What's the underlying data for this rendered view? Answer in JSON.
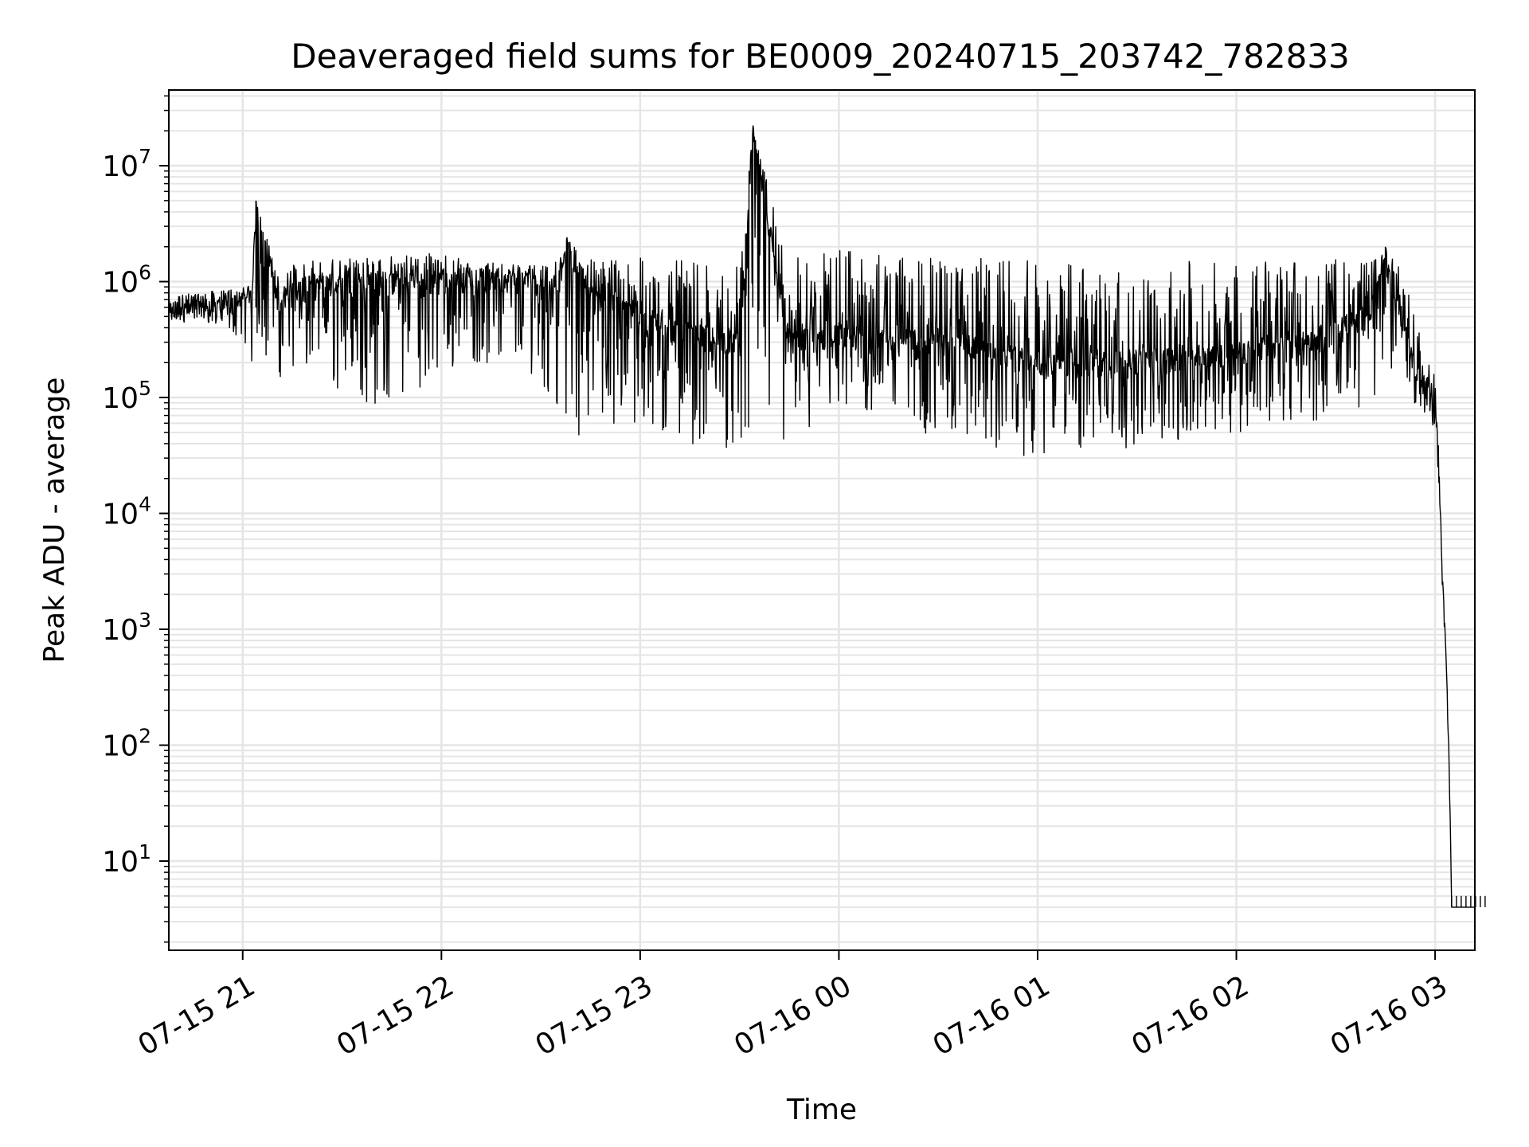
{
  "chart_data": {
    "type": "line",
    "title": "Deaveraged field sums for BE0009_20240715_203742_782833",
    "xlabel": "Time",
    "ylabel": "Peak ADU - average",
    "yscale": "log",
    "xlim": [
      "2024-07-15 20:37:42",
      "2024-07-16 03:12:00"
    ],
    "ylim": [
      1.7,
      45000000
    ],
    "grid": true,
    "line_color": "#000000",
    "grid_color": "#e5e5e5",
    "x_ticks": [
      {
        "value": "2024-07-15 21:00",
        "label": "07-15 21"
      },
      {
        "value": "2024-07-15 22:00",
        "label": "07-15 22"
      },
      {
        "value": "2024-07-15 23:00",
        "label": "07-15 23"
      },
      {
        "value": "2024-07-16 00:00",
        "label": "07-16 00"
      },
      {
        "value": "2024-07-16 01:00",
        "label": "07-16 01"
      },
      {
        "value": "2024-07-16 02:00",
        "label": "07-16 02"
      },
      {
        "value": "2024-07-16 03:00",
        "label": "07-16 03"
      }
    ],
    "y_ticks": [
      {
        "value": 10,
        "base": "10",
        "exp": "1"
      },
      {
        "value": 100,
        "base": "10",
        "exp": "2"
      },
      {
        "value": 1000,
        "base": "10",
        "exp": "3"
      },
      {
        "value": 10000,
        "base": "10",
        "exp": "4"
      },
      {
        "value": 100000,
        "base": "10",
        "exp": "5"
      },
      {
        "value": 1000000,
        "base": "10",
        "exp": "6"
      },
      {
        "value": 10000000,
        "base": "10",
        "exp": "7"
      }
    ],
    "series": [
      {
        "x": [
          "2024-07-15 20:37:42",
          "2024-07-15 20:45",
          "2024-07-15 20:55",
          "2024-07-15 21:00",
          "2024-07-15 21:03",
          "2024-07-15 21:04",
          "2024-07-15 21:10",
          "2024-07-15 21:20",
          "2024-07-15 21:40",
          "2024-07-15 22:00",
          "2024-07-15 22:10",
          "2024-07-15 22:30",
          "2024-07-15 22:35",
          "2024-07-15 22:38",
          "2024-07-15 22:45",
          "2024-07-15 23:00",
          "2024-07-15 23:15",
          "2024-07-15 23:30",
          "2024-07-15 23:34",
          "2024-07-15 23:45",
          "2024-07-16 00:00",
          "2024-07-16 00:15",
          "2024-07-16 00:30",
          "2024-07-16 00:45",
          "2024-07-16 01:00",
          "2024-07-16 01:20",
          "2024-07-16 01:40",
          "2024-07-16 02:00",
          "2024-07-16 02:20",
          "2024-07-16 02:40",
          "2024-07-16 02:45",
          "2024-07-16 02:50",
          "2024-07-16 02:55",
          "2024-07-16 03:00",
          "2024-07-16 03:01",
          "2024-07-16 03:02",
          "2024-07-16 03:03",
          "2024-07-16 03:04",
          "2024-07-16 03:05",
          "2024-07-16 03:12"
        ],
        "y": [
          550000,
          620000,
          600000,
          650000,
          900000,
          5000000,
          700000,
          900000,
          1000000,
          1000000,
          1100000,
          1000000,
          900000,
          2000000,
          800000,
          500000,
          350000,
          300000,
          20000000,
          300000,
          350000,
          300000,
          350000,
          250000,
          200000,
          200000,
          220000,
          250000,
          300000,
          500000,
          1500000,
          500000,
          150000,
          100000,
          30000,
          4000,
          1000,
          150,
          4,
          4
        ],
        "note_min": [
          450000,
          450000,
          400000,
          300000,
          150000,
          300000,
          150000,
          150000,
          80000,
          150000,
          200000,
          150000,
          60000,
          45000,
          50000,
          45000,
          40000,
          35000,
          30000,
          35000,
          60000,
          80000,
          40000,
          35000,
          30000,
          35000,
          40000,
          50000,
          60000,
          80000,
          150000,
          200000,
          70000,
          50000,
          20000,
          4000,
          1000,
          150,
          4,
          4
        ],
        "envelope_max": [
          750000,
          800000,
          850000,
          1000000,
          1200000,
          5000000,
          1300000,
          1500000,
          1700000,
          1800000,
          1500000,
          1400000,
          1600000,
          2200000,
          1600000,
          1600000,
          1500000,
          1400000,
          20000000,
          1600000,
          2000000,
          1700000,
          1600000,
          1600000,
          1500000,
          1400000,
          1500000,
          1500000,
          1600000,
          1500000,
          2000000,
          1200000,
          400000,
          150000,
          30000,
          4000,
          1000,
          150,
          4,
          4
        ]
      }
    ]
  }
}
